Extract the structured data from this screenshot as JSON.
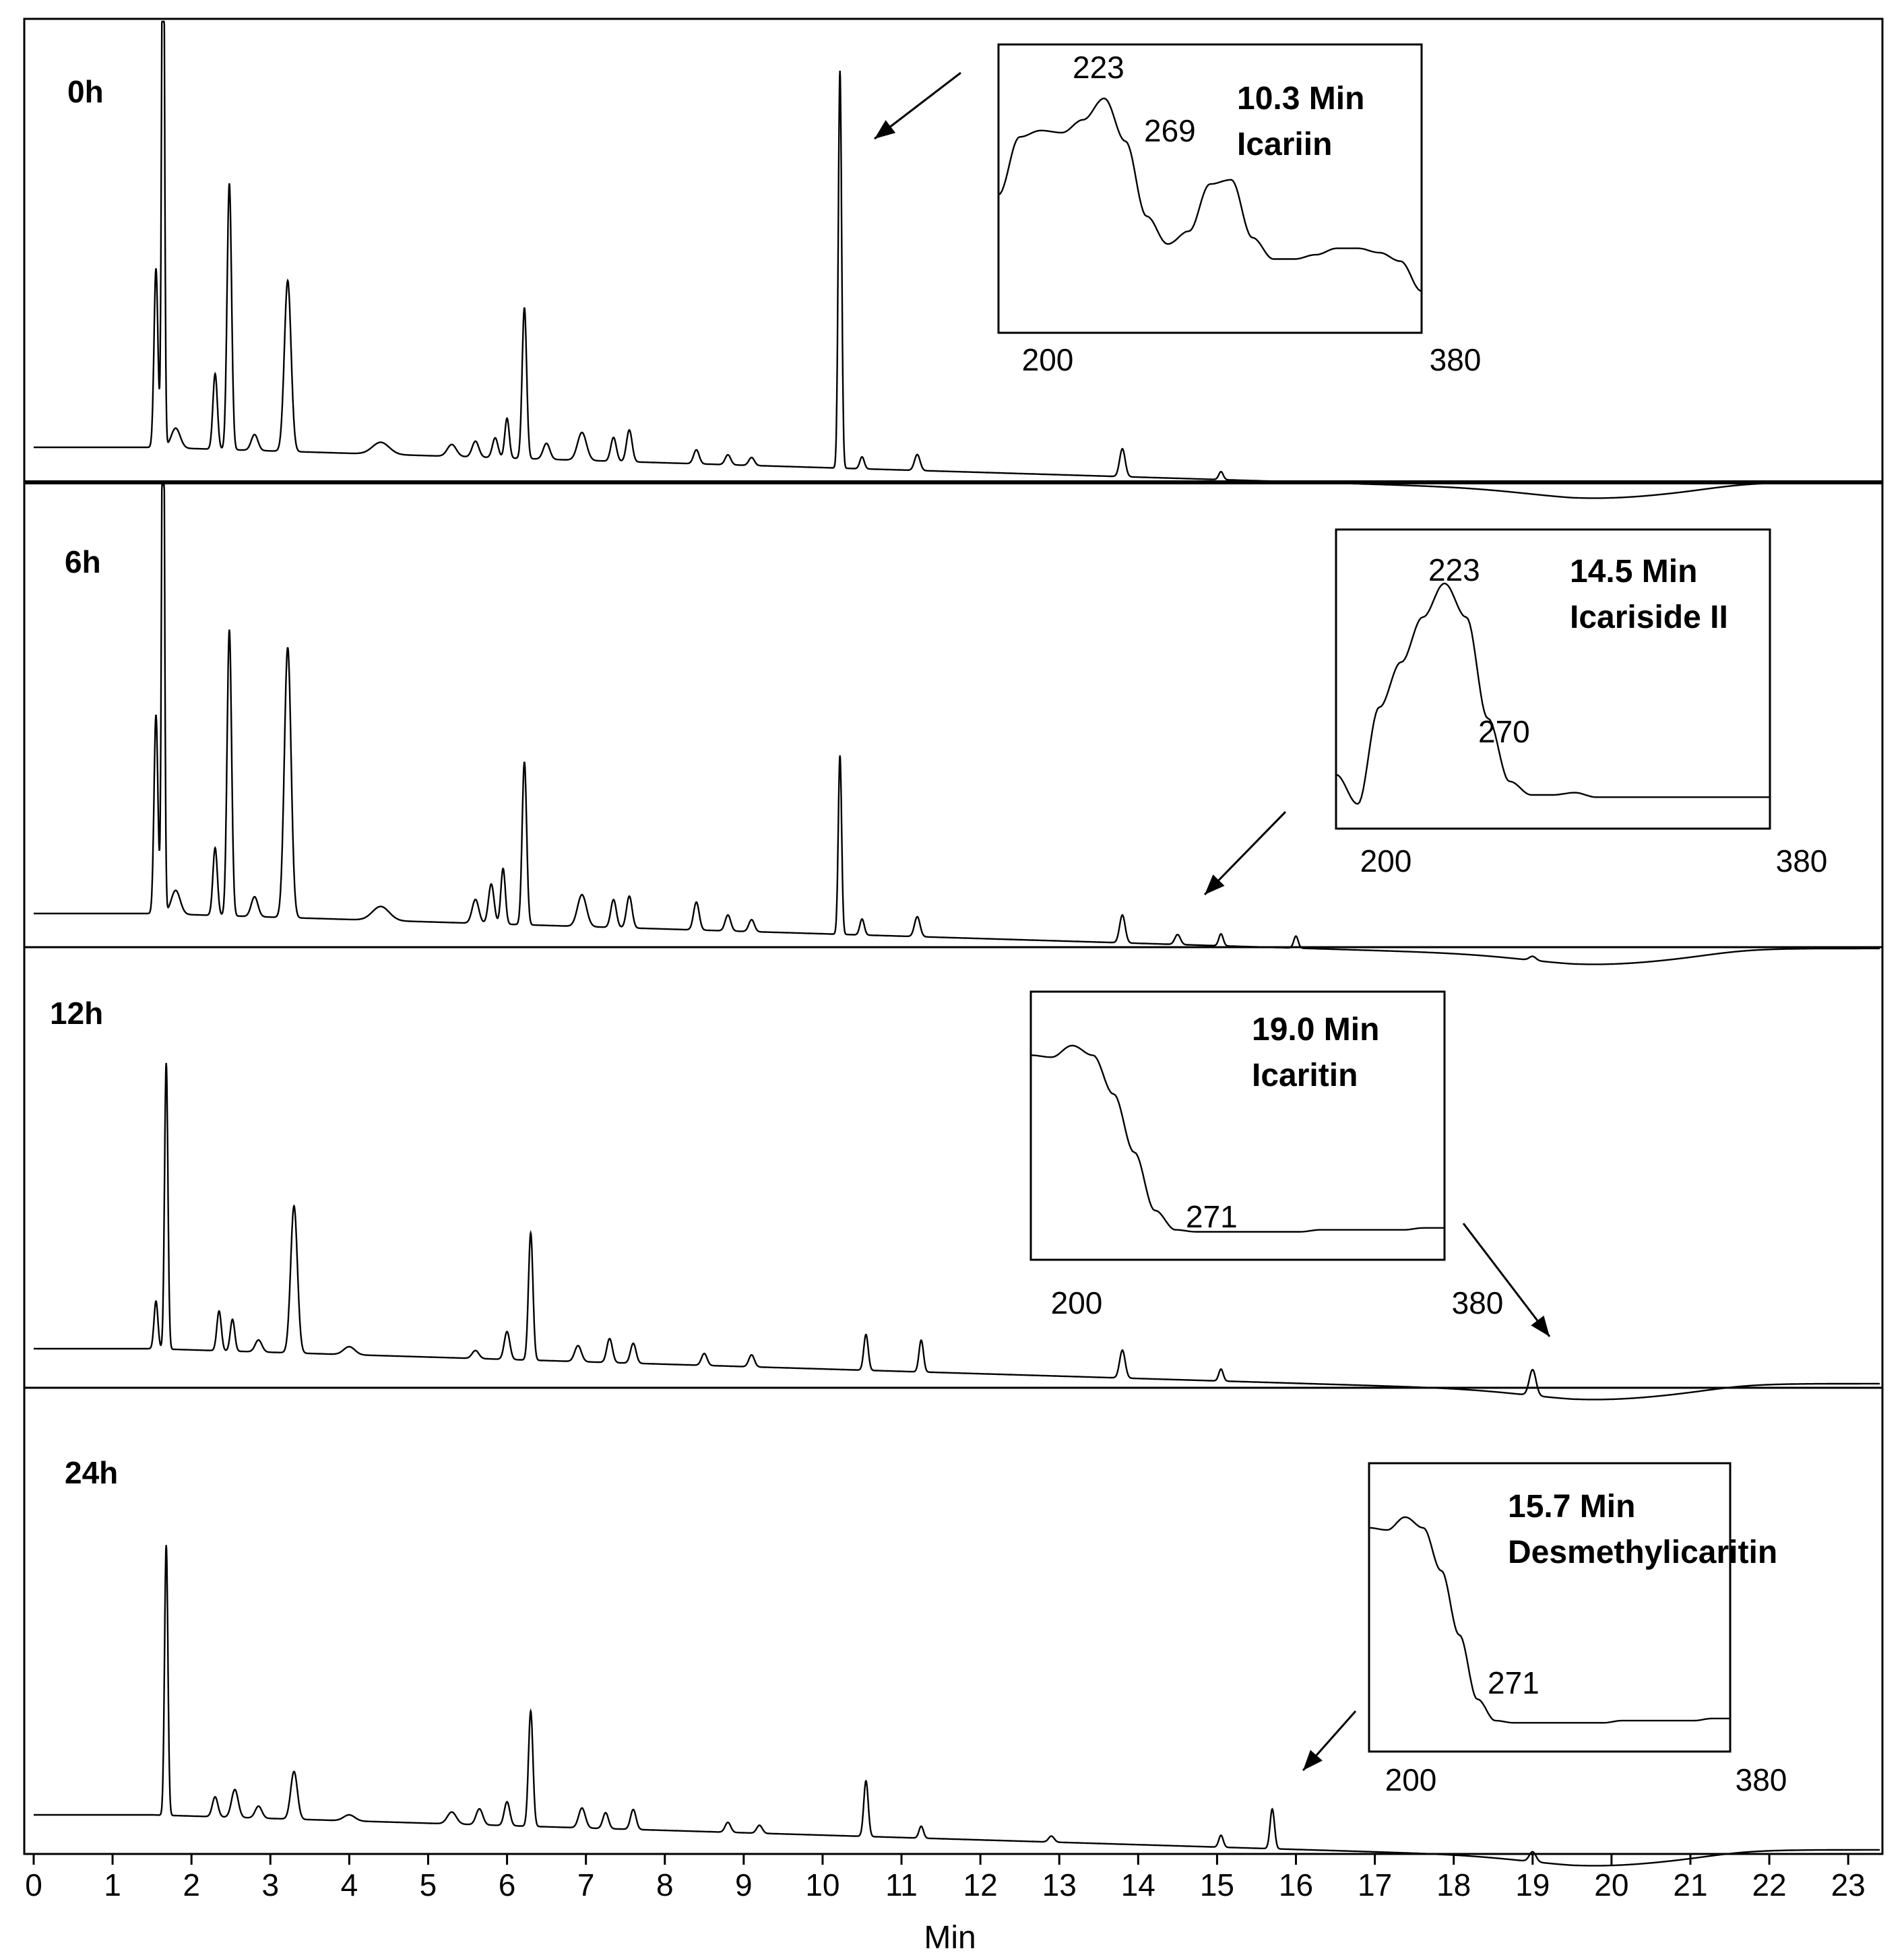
{
  "chart_data": {
    "type": "line",
    "title": "",
    "xlabel": "Min",
    "ylabel": "",
    "xlim": [
      0,
      23.4
    ],
    "x_ticks": [
      "0",
      "1",
      "2",
      "3",
      "4",
      "5",
      "6",
      "7",
      "8",
      "9",
      "10",
      "11",
      "12",
      "13",
      "14",
      "15",
      "16",
      "17",
      "18",
      "19",
      "20",
      "21",
      "22",
      "23"
    ],
    "grid": false,
    "panels": [
      {
        "label": "0h",
        "peaks": [
          {
            "t": 1.55,
            "h": 0.45,
            "w": 0.035
          },
          {
            "t": 1.64,
            "h": 1.6,
            "w": 0.025
          },
          {
            "t": 1.8,
            "h": 0.05,
            "w": 0.08
          },
          {
            "t": 2.3,
            "h": 0.19,
            "w": 0.04
          },
          {
            "t": 2.48,
            "h": 0.67,
            "w": 0.04
          },
          {
            "t": 2.8,
            "h": 0.04,
            "w": 0.06
          },
          {
            "t": 3.22,
            "h": 0.43,
            "w": 0.06
          },
          {
            "t": 4.4,
            "h": 0.03,
            "w": 0.15
          },
          {
            "t": 5.3,
            "h": 0.03,
            "w": 0.08
          },
          {
            "t": 5.6,
            "h": 0.04,
            "w": 0.06
          },
          {
            "t": 5.85,
            "h": 0.05,
            "w": 0.05
          },
          {
            "t": 6.0,
            "h": 0.1,
            "w": 0.04
          },
          {
            "t": 6.22,
            "h": 0.38,
            "w": 0.04
          },
          {
            "t": 6.5,
            "h": 0.04,
            "w": 0.06
          },
          {
            "t": 6.95,
            "h": 0.07,
            "w": 0.08
          },
          {
            "t": 7.35,
            "h": 0.06,
            "w": 0.05
          },
          {
            "t": 7.55,
            "h": 0.08,
            "w": 0.05
          },
          {
            "t": 8.4,
            "h": 0.035,
            "w": 0.05
          },
          {
            "t": 8.8,
            "h": 0.025,
            "w": 0.05
          },
          {
            "t": 9.1,
            "h": 0.02,
            "w": 0.05
          },
          {
            "t": 10.22,
            "h": 1.0,
            "w": 0.03
          },
          {
            "t": 10.5,
            "h": 0.03,
            "w": 0.04
          },
          {
            "t": 11.2,
            "h": 0.04,
            "w": 0.05
          },
          {
            "t": 13.8,
            "h": 0.07,
            "w": 0.05
          },
          {
            "t": 15.05,
            "h": 0.02,
            "w": 0.04
          }
        ],
        "inset": {
          "title": "10.3 Min",
          "compound": "Icariin",
          "x_range": [
            "200",
            "380"
          ],
          "peak_labels": [
            "223",
            "269"
          ],
          "spectrum": [
            0.55,
            0.82,
            0.85,
            0.84,
            0.9,
            1.0,
            0.8,
            0.45,
            0.32,
            0.38,
            0.6,
            0.62,
            0.35,
            0.25,
            0.25,
            0.27,
            0.3,
            0.3,
            0.28,
            0.24,
            0.1
          ]
        }
      },
      {
        "label": "6h",
        "peaks": [
          {
            "t": 1.55,
            "h": 0.5,
            "w": 0.035
          },
          {
            "t": 1.64,
            "h": 1.6,
            "w": 0.025
          },
          {
            "t": 1.8,
            "h": 0.06,
            "w": 0.08
          },
          {
            "t": 2.3,
            "h": 0.17,
            "w": 0.04
          },
          {
            "t": 2.48,
            "h": 0.72,
            "w": 0.04
          },
          {
            "t": 2.8,
            "h": 0.05,
            "w": 0.06
          },
          {
            "t": 3.22,
            "h": 0.68,
            "w": 0.06
          },
          {
            "t": 4.4,
            "h": 0.035,
            "w": 0.15
          },
          {
            "t": 5.6,
            "h": 0.06,
            "w": 0.06
          },
          {
            "t": 5.8,
            "h": 0.1,
            "w": 0.05
          },
          {
            "t": 5.95,
            "h": 0.14,
            "w": 0.04
          },
          {
            "t": 6.22,
            "h": 0.41,
            "w": 0.04
          },
          {
            "t": 6.95,
            "h": 0.08,
            "w": 0.08
          },
          {
            "t": 7.35,
            "h": 0.07,
            "w": 0.05
          },
          {
            "t": 7.55,
            "h": 0.08,
            "w": 0.05
          },
          {
            "t": 8.4,
            "h": 0.07,
            "w": 0.05
          },
          {
            "t": 8.8,
            "h": 0.04,
            "w": 0.05
          },
          {
            "t": 9.1,
            "h": 0.03,
            "w": 0.05
          },
          {
            "t": 10.22,
            "h": 0.45,
            "w": 0.03
          },
          {
            "t": 10.5,
            "h": 0.04,
            "w": 0.04
          },
          {
            "t": 11.2,
            "h": 0.05,
            "w": 0.05
          },
          {
            "t": 13.8,
            "h": 0.07,
            "w": 0.05
          },
          {
            "t": 14.5,
            "h": 0.025,
            "w": 0.05
          },
          {
            "t": 15.05,
            "h": 0.03,
            "w": 0.04
          },
          {
            "t": 16.0,
            "h": 0.03,
            "w": 0.04
          },
          {
            "t": 19.0,
            "h": 0.01,
            "w": 0.06
          }
        ],
        "inset": {
          "title": "14.5 Min",
          "compound": "Icariside II",
          "x_range": [
            "200",
            "380"
          ],
          "peak_labels": [
            "223",
            "270"
          ],
          "spectrum": [
            0.15,
            0.02,
            0.45,
            0.65,
            0.85,
            1.0,
            0.85,
            0.4,
            0.12,
            0.06,
            0.06,
            0.07,
            0.05,
            0.05,
            0.05,
            0.05,
            0.05,
            0.05,
            0.05,
            0.05,
            0.05
          ]
        }
      },
      {
        "label": "12h",
        "peaks": [
          {
            "t": 1.55,
            "h": 0.12,
            "w": 0.035
          },
          {
            "t": 1.68,
            "h": 0.72,
            "w": 0.03
          },
          {
            "t": 2.35,
            "h": 0.1,
            "w": 0.04
          },
          {
            "t": 2.52,
            "h": 0.08,
            "w": 0.04
          },
          {
            "t": 2.85,
            "h": 0.03,
            "w": 0.06
          },
          {
            "t": 3.3,
            "h": 0.37,
            "w": 0.06
          },
          {
            "t": 4.0,
            "h": 0.02,
            "w": 0.1
          },
          {
            "t": 5.6,
            "h": 0.02,
            "w": 0.06
          },
          {
            "t": 6.0,
            "h": 0.07,
            "w": 0.05
          },
          {
            "t": 6.3,
            "h": 0.32,
            "w": 0.04
          },
          {
            "t": 6.9,
            "h": 0.04,
            "w": 0.06
          },
          {
            "t": 7.3,
            "h": 0.06,
            "w": 0.05
          },
          {
            "t": 7.6,
            "h": 0.05,
            "w": 0.05
          },
          {
            "t": 8.5,
            "h": 0.03,
            "w": 0.05
          },
          {
            "t": 9.1,
            "h": 0.03,
            "w": 0.05
          },
          {
            "t": 10.55,
            "h": 0.09,
            "w": 0.04
          },
          {
            "t": 11.25,
            "h": 0.08,
            "w": 0.04
          },
          {
            "t": 13.8,
            "h": 0.07,
            "w": 0.05
          },
          {
            "t": 15.05,
            "h": 0.03,
            "w": 0.04
          },
          {
            "t": 19.0,
            "h": 0.065,
            "w": 0.06
          }
        ],
        "inset": {
          "title": "19.0 Min",
          "compound": "Icaritin",
          "x_range": [
            "200",
            "380"
          ],
          "peak_labels": [
            "271"
          ],
          "spectrum": [
            0.95,
            0.94,
            1.0,
            0.95,
            0.75,
            0.45,
            0.15,
            0.05,
            0.04,
            0.04,
            0.04,
            0.04,
            0.04,
            0.04,
            0.05,
            0.05,
            0.05,
            0.05,
            0.05,
            0.06,
            0.06
          ]
        }
      },
      {
        "label": "24h",
        "peaks": [
          {
            "t": 1.68,
            "h": 0.68,
            "w": 0.03
          },
          {
            "t": 2.3,
            "h": 0.05,
            "w": 0.05
          },
          {
            "t": 2.55,
            "h": 0.07,
            "w": 0.06
          },
          {
            "t": 2.85,
            "h": 0.03,
            "w": 0.06
          },
          {
            "t": 3.3,
            "h": 0.12,
            "w": 0.06
          },
          {
            "t": 4.0,
            "h": 0.015,
            "w": 0.1
          },
          {
            "t": 5.3,
            "h": 0.03,
            "w": 0.08
          },
          {
            "t": 5.65,
            "h": 0.04,
            "w": 0.06
          },
          {
            "t": 6.0,
            "h": 0.06,
            "w": 0.05
          },
          {
            "t": 6.3,
            "h": 0.29,
            "w": 0.04
          },
          {
            "t": 6.95,
            "h": 0.05,
            "w": 0.06
          },
          {
            "t": 7.25,
            "h": 0.04,
            "w": 0.05
          },
          {
            "t": 7.6,
            "h": 0.05,
            "w": 0.05
          },
          {
            "t": 8.8,
            "h": 0.025,
            "w": 0.05
          },
          {
            "t": 9.2,
            "h": 0.02,
            "w": 0.05
          },
          {
            "t": 10.55,
            "h": 0.14,
            "w": 0.04
          },
          {
            "t": 11.25,
            "h": 0.03,
            "w": 0.04
          },
          {
            "t": 12.9,
            "h": 0.015,
            "w": 0.05
          },
          {
            "t": 15.05,
            "h": 0.03,
            "w": 0.04
          },
          {
            "t": 15.7,
            "h": 0.1,
            "w": 0.04
          },
          {
            "t": 19.0,
            "h": 0.025,
            "w": 0.06
          }
        ],
        "inset": {
          "title": "15.7 Min",
          "compound": "Desmethylicaritin",
          "x_range": [
            "200",
            "380"
          ],
          "peak_labels": [
            "271"
          ],
          "spectrum": [
            0.95,
            0.94,
            1.0,
            0.95,
            0.75,
            0.45,
            0.15,
            0.05,
            0.04,
            0.04,
            0.04,
            0.04,
            0.04,
            0.04,
            0.05,
            0.05,
            0.05,
            0.05,
            0.05,
            0.06,
            0.06
          ]
        }
      }
    ]
  }
}
